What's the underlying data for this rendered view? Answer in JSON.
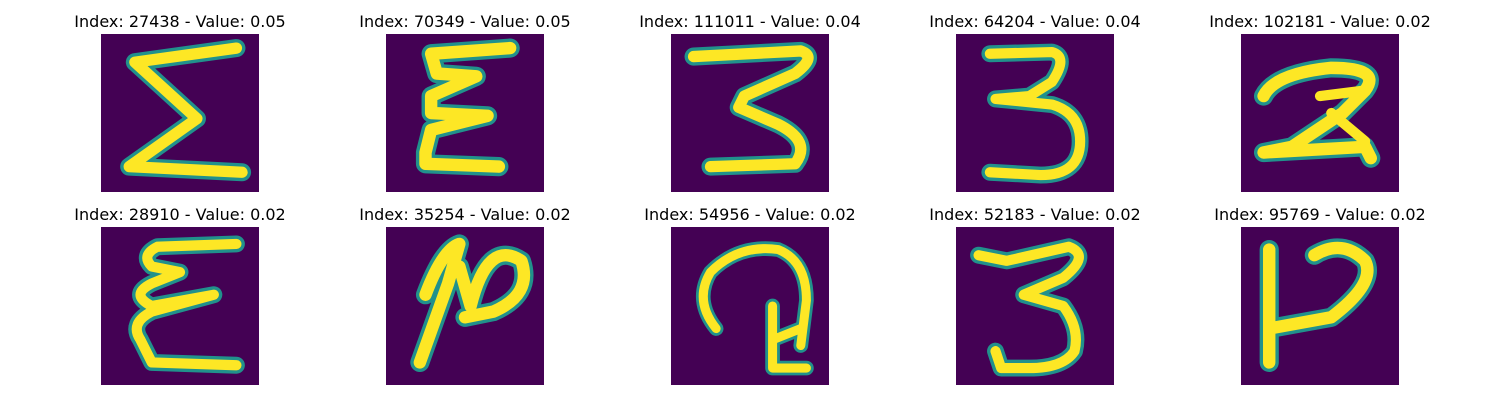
{
  "panels": [
    {
      "title": "Index: 27438 - Value: 0.05",
      "glyph": "sigma-like-3"
    },
    {
      "title": "Index: 70349 - Value: 0.05",
      "glyph": "reversed-3-like-E"
    },
    {
      "title": "Index: 111011 - Value: 0.04",
      "glyph": "digit-3-tight"
    },
    {
      "title": "Index: 64204 - Value: 0.04",
      "glyph": "digit-3"
    },
    {
      "title": "Index: 102181 - Value: 0.02",
      "glyph": "digit-2"
    },
    {
      "title": "Index: 28910 - Value: 0.02",
      "glyph": "curly-E"
    },
    {
      "title": "Index: 35254 - Value: 0.02",
      "glyph": "slanted-2"
    },
    {
      "title": "Index: 54956 - Value: 0.02",
      "glyph": "curled-2"
    },
    {
      "title": "Index: 52183 - Value: 0.02",
      "glyph": "digit-3-loop"
    },
    {
      "title": "Index: 95769 - Value: 0.02",
      "glyph": "stem-2"
    }
  ],
  "colors": {
    "background": "#440154",
    "stroke_core": "#fde725",
    "stroke_edge": "#21918c"
  }
}
